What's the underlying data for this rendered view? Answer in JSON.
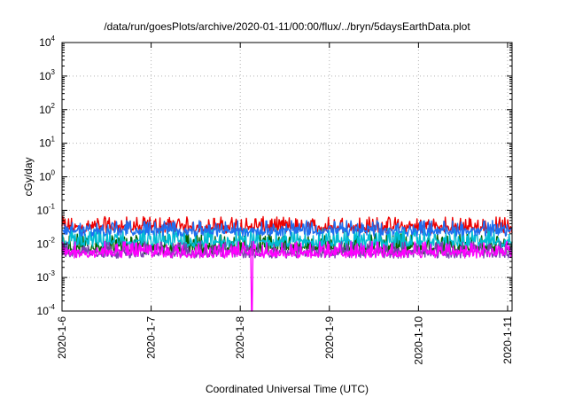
{
  "chart_data": {
    "type": "line",
    "title": "/data/run/goesPlots/archive/2020-01-11/00:00/flux/../bryn/5daysEarthData.plot",
    "xlabel": "Coordinated Universal Time (UTC)",
    "ylabel": "cGy/day",
    "yscale": "log",
    "ylim": [
      0.0001,
      10000
    ],
    "xlim": [
      0,
      5.05
    ],
    "y_ticks": [
      {
        "base": "10",
        "exp": "-4",
        "value": 0.0001
      },
      {
        "base": "10",
        "exp": "-3",
        "value": 0.001
      },
      {
        "base": "10",
        "exp": "-2",
        "value": 0.01
      },
      {
        "base": "10",
        "exp": "-1",
        "value": 0.1
      },
      {
        "base": "10",
        "exp": "0",
        "value": 1
      },
      {
        "base": "10",
        "exp": "1",
        "value": 10
      },
      {
        "base": "10",
        "exp": "2",
        "value": 100
      },
      {
        "base": "10",
        "exp": "3",
        "value": 1000
      },
      {
        "base": "10",
        "exp": "4",
        "value": 10000
      }
    ],
    "x_ticks": [
      {
        "label": "2020-1-6",
        "value": 0
      },
      {
        "label": "2020-1-7",
        "value": 1
      },
      {
        "label": "2020-1-8",
        "value": 2
      },
      {
        "label": "2020-1-9",
        "value": 3
      },
      {
        "label": "2020-1-10",
        "value": 4
      },
      {
        "label": "2020-1-11",
        "value": 5
      }
    ],
    "grid": true,
    "series": [
      {
        "color": "#ee0000",
        "baseline": 0.025,
        "peak": 0.065
      },
      {
        "color": "#006400",
        "baseline": 0.006,
        "peak": 0.02
      },
      {
        "color": "#00bcd4",
        "baseline": 0.009,
        "peak": 0.03
      },
      {
        "color": "#7b3fb0",
        "baseline": 0.0045,
        "peak": 0.012
      },
      {
        "color": "#1e6ff0",
        "baseline": 0.02,
        "peak": 0.05
      },
      {
        "color": "#ff00ff",
        "baseline": 0.0045,
        "peak": 0.012
      }
    ],
    "annotations": [
      {
        "note": "magenta dip",
        "x": 2.13,
        "y": 0.0001
      }
    ]
  }
}
